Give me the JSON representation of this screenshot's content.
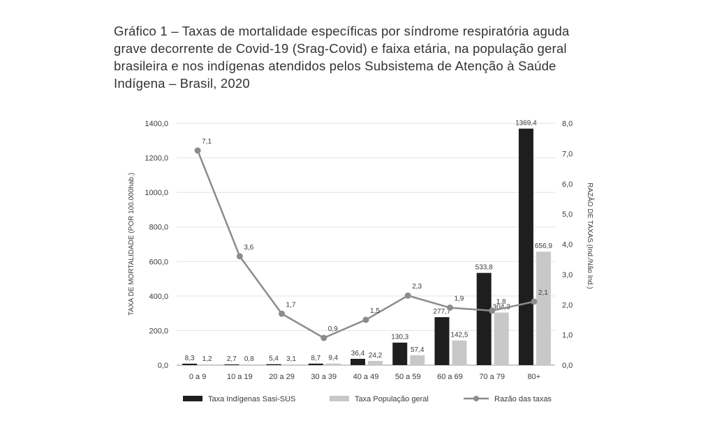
{
  "title": "Gráfico 1 – Taxas de mortalidade específicas por síndrome respiratória aguda grave decorrente de Covid-19 (Srag-Covid) e faixa etária, na população geral brasileira e nos indígenas atendidos pelos Subsistema de Atenção à Saúde Indígena – Brasil, 2020",
  "chart_data": {
    "type": "bar",
    "categories": [
      "0 a 9",
      "10 a 19",
      "20 a 29",
      "30 a 39",
      "40 a 49",
      "50 a 59",
      "60 a 69",
      "70 a 79",
      "80+"
    ],
    "series": [
      {
        "name": "Taxa Indígenas Sasi-SUS",
        "type": "bar",
        "axis": "left",
        "color": "#1e1e1e",
        "values": [
          8.3,
          2.7,
          5.4,
          8.7,
          36.4,
          130.3,
          277.7,
          533.8,
          1369.4
        ],
        "labels": [
          "8,3",
          "2,7",
          "5,4",
          "8,7",
          "36,4",
          "130,3",
          "277,7",
          "533,8",
          "1369,4"
        ]
      },
      {
        "name": "Taxa População geral",
        "type": "bar",
        "axis": "left",
        "color": "#c8c8c8",
        "values": [
          1.2,
          0.8,
          3.1,
          9.4,
          24.2,
          57.4,
          142.5,
          304.3,
          656.9
        ],
        "labels": [
          "1,2",
          "0,8",
          "3,1",
          "9,4",
          "24,2",
          "57,4",
          "142,5",
          "304,3",
          "656,9"
        ]
      },
      {
        "name": "Razão das taxas",
        "type": "line",
        "axis": "right",
        "color": "#8c8c8c",
        "values": [
          7.1,
          3.6,
          1.7,
          0.9,
          1.5,
          2.3,
          1.9,
          1.8,
          2.1
        ],
        "labels": [
          "7,1",
          "3,6",
          "1,7",
          "0,9",
          "1,5",
          "2,3",
          "1,9",
          "1,8",
          "2,1"
        ]
      }
    ],
    "ylabel": "TAXA DE MORTALIDADE (POR 100.000hab.)",
    "ylabel_right": "RAZÃO DE TAXAS (Ind./Não Ind.)",
    "ylim": [
      0,
      1400
    ],
    "ylim_right": [
      0,
      8
    ],
    "yticks": [
      "0,0",
      "200,0",
      "400,0",
      "600,0",
      "800,0",
      "1000,0",
      "1200,0",
      "1400,0"
    ],
    "yticks_right": [
      "0,0",
      "1,0",
      "2,0",
      "3,0",
      "4,0",
      "5,0",
      "6,0",
      "7,0",
      "8,0"
    ],
    "grid": true,
    "legend_position": "bottom"
  }
}
